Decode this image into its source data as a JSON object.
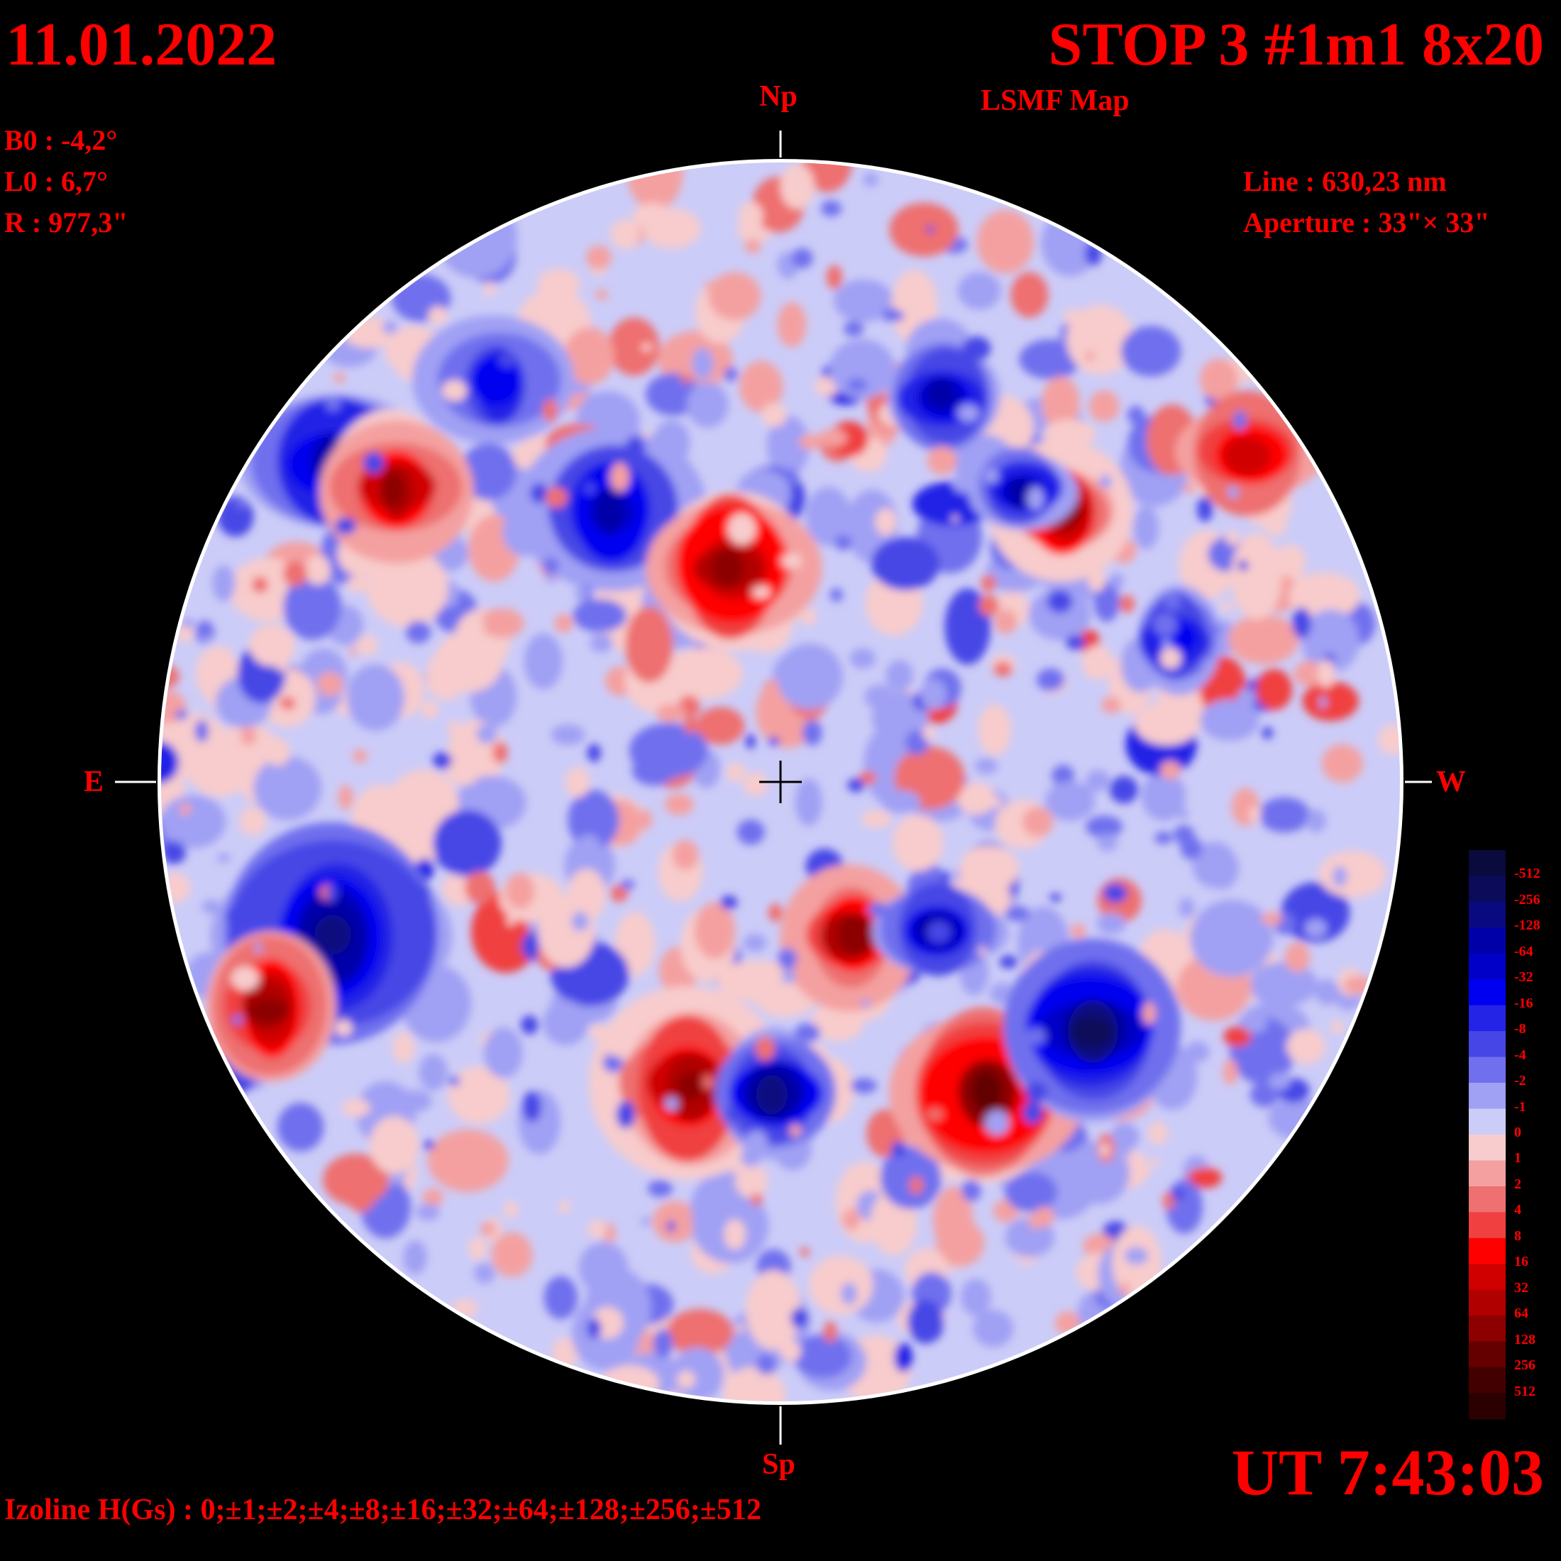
{
  "header": {
    "date": "11.01.2022",
    "title": "STOP 3 #1m1 8x20",
    "subtitle": "LSMF  Map"
  },
  "params": {
    "b0": "B0 : -4,2°",
    "l0": "L0 : 6,7°",
    "r": "R  : 977,3\""
  },
  "instrument": {
    "line": "Line :  630,23 nm",
    "aperture": "Aperture : 33\"× 33\""
  },
  "orientation": {
    "north": "Np",
    "south": "Sp",
    "east": "E",
    "west": "W"
  },
  "time": "UT 7:43:03",
  "izoline": "Izoline H(Gs) : 0;±1;±2;±4;±8;±16;±32;±64;±128;±256;±512",
  "colorbar": {
    "levels": [
      "-512",
      "-256",
      "-128",
      "-64",
      "-32",
      "-16",
      "-8",
      "-4",
      "-2",
      "-1",
      "0",
      "1",
      "2",
      "4",
      "8",
      "16",
      "32",
      "64",
      "128",
      "256",
      "512"
    ],
    "colors": [
      "#0a0a3c",
      "#0b0b5a",
      "#0a0a80",
      "#0000a8",
      "#0000c8",
      "#0000f0",
      "#2424e6",
      "#4646e6",
      "#7070ee",
      "#a0a0f4",
      "#ccccf8",
      "#f8cccc",
      "#f4a0a0",
      "#ee7070",
      "#f04040",
      "#ff0000",
      "#d00000",
      "#b00000",
      "#8c0000",
      "#640000",
      "#420000",
      "#2a0000"
    ]
  },
  "map": {
    "features": [
      {
        "sign": "negative",
        "field": -256
      },
      {
        "sign": "positive",
        "field": 256
      },
      {
        "sign": "negative",
        "field": -128
      },
      {
        "sign": "positive",
        "field": 128
      }
    ]
  }
}
